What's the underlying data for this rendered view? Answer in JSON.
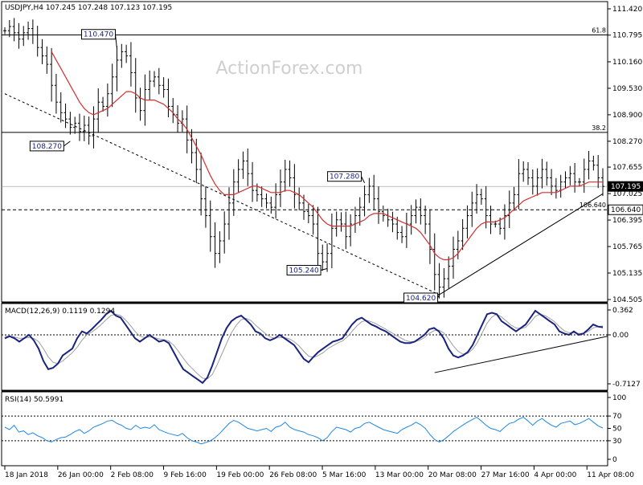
{
  "chart_data": [
    {
      "type": "candlestick",
      "title": "USDJPY,H4  107.245 107.248 107.123 107.195",
      "symbol": "USDJPY",
      "timeframe": "H4",
      "ohlc_last": {
        "open": 107.245,
        "high": 107.248,
        "low": 107.123,
        "close": 107.195
      },
      "watermark": "ActionForex.com",
      "ylim": [
        104.505,
        111.42
      ],
      "y_ticks": [
        "111.420",
        "110.795",
        "110.160",
        "109.530",
        "108.900",
        "108.270",
        "107.655",
        "107.025",
        "106.395",
        "105.765",
        "105.135",
        "104.505"
      ],
      "current_price_label": "107.195",
      "horizontal_levels": [
        {
          "value": 110.8,
          "label": "61.8",
          "style": "solid"
        },
        {
          "value": 108.48,
          "label": "38.2",
          "style": "solid"
        },
        {
          "value": 107.195,
          "label": "",
          "style": "thin"
        },
        {
          "value": 106.64,
          "label": "106.640",
          "style": "dashed"
        }
      ],
      "annotations": [
        {
          "text": "110.470",
          "value": 110.47
        },
        {
          "text": "108.270",
          "value": 108.27
        },
        {
          "text": "107.280",
          "value": 107.28
        },
        {
          "text": "105.240",
          "value": 105.24
        },
        {
          "text": "104.620",
          "value": 104.62
        }
      ],
      "trendlines": [
        {
          "style": "dashed",
          "from": {
            "bar": 0,
            "value": 109.4
          },
          "to": {
            "bar": 93,
            "value": 104.62
          }
        },
        {
          "style": "solid",
          "from": {
            "bar": 93,
            "value": 104.62
          },
          "to": {
            "bar": 128,
            "value": 107.02
          }
        }
      ],
      "close_series": [
        110.9,
        111.0,
        110.85,
        110.7,
        110.85,
        110.95,
        110.8,
        110.5,
        110.3,
        110.1,
        109.6,
        109.2,
        108.95,
        108.8,
        108.6,
        108.7,
        108.5,
        108.65,
        108.4,
        108.8,
        109.2,
        109.1,
        109.4,
        109.8,
        110.2,
        110.4,
        110.3,
        109.9,
        109.3,
        109.0,
        109.5,
        109.7,
        109.8,
        109.6,
        109.5,
        109.1,
        108.9,
        108.7,
        108.8,
        108.3,
        108.0,
        107.6,
        106.9,
        106.5,
        106.0,
        105.6,
        105.9,
        106.3,
        106.8,
        107.3,
        107.6,
        107.8,
        107.5,
        107.1,
        107.0,
        106.9,
        106.8,
        106.7,
        107.0,
        107.3,
        107.6,
        107.4,
        107.0,
        106.8,
        106.6,
        106.5,
        106.3,
        105.6,
        105.4,
        105.6,
        106.2,
        106.4,
        106.3,
        106.0,
        106.3,
        106.5,
        106.7,
        107.0,
        107.2,
        106.9,
        106.6,
        106.5,
        106.4,
        106.3,
        106.1,
        106.0,
        106.3,
        106.5,
        106.7,
        106.5,
        106.3,
        105.7,
        105.1,
        104.8,
        105.0,
        105.3,
        105.7,
        105.9,
        106.2,
        106.5,
        106.8,
        107.0,
        106.9,
        106.5,
        106.3,
        106.3,
        106.2,
        106.5,
        106.8,
        107.0,
        107.5,
        107.6,
        107.4,
        107.2,
        107.4,
        107.6,
        107.4,
        107.2,
        107.1,
        107.3,
        107.4,
        107.5,
        107.3,
        107.3,
        107.6,
        107.8,
        107.7,
        107.4,
        107.195
      ],
      "ma_series": [
        null,
        null,
        null,
        null,
        null,
        null,
        null,
        null,
        null,
        null,
        110.4,
        110.2,
        110.0,
        109.8,
        109.6,
        109.4,
        109.2,
        109.05,
        108.95,
        108.9,
        108.95,
        109.0,
        109.05,
        109.15,
        109.25,
        109.35,
        109.45,
        109.45,
        109.4,
        109.3,
        109.25,
        109.25,
        109.25,
        109.2,
        109.15,
        109.05,
        108.95,
        108.8,
        108.7,
        108.55,
        108.35,
        108.15,
        107.95,
        107.7,
        107.45,
        107.25,
        107.1,
        107.0,
        107.0,
        107.0,
        107.05,
        107.1,
        107.15,
        107.2,
        107.2,
        107.15,
        107.1,
        107.05,
        107.05,
        107.05,
        107.1,
        107.1,
        107.05,
        107.0,
        106.9,
        106.8,
        106.7,
        106.55,
        106.4,
        106.3,
        106.25,
        106.25,
        106.25,
        106.25,
        106.25,
        106.3,
        106.35,
        106.4,
        106.5,
        106.55,
        106.55,
        106.55,
        106.5,
        106.45,
        106.4,
        106.35,
        106.3,
        106.25,
        106.2,
        106.1,
        105.95,
        105.8,
        105.6,
        105.5,
        105.45,
        105.45,
        105.5,
        105.6,
        105.75,
        105.9,
        106.05,
        106.2,
        106.3,
        106.35,
        106.35,
        106.35,
        106.4,
        106.45,
        106.55,
        106.65,
        106.75,
        106.85,
        106.9,
        106.95,
        107.0,
        107.05,
        107.05,
        107.05,
        107.05,
        107.1,
        107.15,
        107.2,
        107.2,
        107.2,
        107.25,
        107.3,
        107.3,
        107.3,
        107.3
      ],
      "x_tick_labels": [
        "18 Jan 2018",
        "26 Jan 00:00",
        "2 Feb 08:00",
        "9 Feb 16:00",
        "19 Feb 00:00",
        "26 Feb 08:00",
        "5 Mar 16:00",
        "13 Mar 00:00",
        "20 Mar 08:00",
        "27 Mar 16:00",
        "4 Apr 00:00",
        "11 Apr 08:00"
      ]
    },
    {
      "type": "line",
      "title": "MACD(12,26,9)  0.1119  0.1294",
      "ylim": [
        -0.7127,
        0.362
      ],
      "y_ticks": [
        "0.362",
        "0.00",
        "-0.7127"
      ],
      "current_value_label": "0.00",
      "series": [
        {
          "name": "",
          "values": [
            -0.05,
            -0.02,
            -0.05,
            -0.1,
            -0.05,
            0.0,
            -0.08,
            -0.2,
            -0.38,
            -0.5,
            -0.48,
            -0.42,
            -0.3,
            -0.25,
            -0.2,
            -0.05,
            0.05,
            0.02,
            0.08,
            0.15,
            0.22,
            0.3,
            0.35,
            0.28,
            0.25,
            0.15,
            0.05,
            -0.05,
            -0.1,
            -0.05,
            0.0,
            -0.05,
            -0.1,
            -0.08,
            -0.12,
            -0.25,
            -0.38,
            -0.5,
            -0.55,
            -0.6,
            -0.65,
            -0.7,
            -0.62,
            -0.45,
            -0.25,
            -0.05,
            0.1,
            0.2,
            0.25,
            0.28,
            0.22,
            0.15,
            0.05,
            0.02,
            -0.05,
            -0.08,
            -0.05,
            0.0,
            -0.05,
            -0.1,
            -0.15,
            -0.25,
            -0.35,
            -0.4,
            -0.32,
            -0.25,
            -0.2,
            -0.15,
            -0.1,
            -0.08,
            -0.05,
            0.05,
            0.15,
            0.22,
            0.25,
            0.2,
            0.15,
            0.12,
            0.08,
            0.05,
            0.0,
            -0.05,
            -0.1,
            -0.12,
            -0.12,
            -0.1,
            -0.05,
            0.0,
            0.08,
            0.1,
            0.05,
            -0.05,
            -0.2,
            -0.3,
            -0.33,
            -0.3,
            -0.25,
            -0.15,
            0.0,
            0.15,
            0.3,
            0.32,
            0.3,
            0.2,
            0.15,
            0.1,
            0.05,
            0.1,
            0.15,
            0.25,
            0.35,
            0.3,
            0.25,
            0.2,
            0.15,
            0.05,
            0.02,
            0.0,
            0.05,
            0.0,
            0.02,
            0.08,
            0.15,
            0.12,
            0.11
          ]
        },
        {
          "name": "",
          "values": [
            -0.02,
            -0.02,
            -0.03,
            -0.05,
            -0.05,
            -0.04,
            -0.05,
            -0.1,
            -0.2,
            -0.32,
            -0.4,
            -0.42,
            -0.38,
            -0.32,
            -0.26,
            -0.18,
            -0.08,
            0.0,
            0.04,
            0.09,
            0.15,
            0.22,
            0.28,
            0.3,
            0.28,
            0.22,
            0.14,
            0.05,
            -0.02,
            -0.04,
            -0.03,
            -0.04,
            -0.06,
            -0.07,
            -0.09,
            -0.15,
            -0.24,
            -0.34,
            -0.43,
            -0.5,
            -0.57,
            -0.63,
            -0.64,
            -0.58,
            -0.44,
            -0.28,
            -0.12,
            0.03,
            0.14,
            0.22,
            0.24,
            0.21,
            0.14,
            0.08,
            0.02,
            -0.03,
            -0.05,
            -0.04,
            -0.04,
            -0.06,
            -0.1,
            -0.16,
            -0.24,
            -0.31,
            -0.33,
            -0.3,
            -0.26,
            -0.2,
            -0.16,
            -0.12,
            -0.09,
            -0.03,
            0.05,
            0.13,
            0.19,
            0.21,
            0.19,
            0.16,
            0.12,
            0.08,
            0.04,
            0.0,
            -0.04,
            -0.08,
            -0.1,
            -0.1,
            -0.08,
            -0.04,
            0.02,
            0.06,
            0.07,
            0.03,
            -0.06,
            -0.16,
            -0.24,
            -0.28,
            -0.27,
            -0.21,
            -0.11,
            0.03,
            0.17,
            0.26,
            0.3,
            0.26,
            0.2,
            0.14,
            0.1,
            0.09,
            0.11,
            0.18,
            0.27,
            0.3,
            0.28,
            0.24,
            0.19,
            0.12,
            0.06,
            0.03,
            0.03,
            0.02,
            0.02,
            0.05,
            0.1,
            0.12,
            0.1294
          ]
        }
      ],
      "trendline": {
        "style": "solid",
        "from": {
          "bar": 92,
          "value": -0.55
        },
        "to": {
          "bar": 129,
          "value": -0.02
        }
      }
    },
    {
      "type": "line",
      "title": "RSI(14)  50.5991",
      "ylim": [
        0,
        100
      ],
      "y_ticks": [
        "100",
        "70",
        "50",
        "30",
        "0"
      ],
      "levels": [
        70,
        30
      ],
      "series": [
        {
          "name": "",
          "values": [
            52,
            48,
            55,
            44,
            46,
            40,
            43,
            38,
            35,
            30,
            28,
            32,
            35,
            36,
            40,
            45,
            48,
            42,
            46,
            52,
            55,
            58,
            62,
            63,
            58,
            55,
            50,
            48,
            55,
            50,
            52,
            50,
            56,
            48,
            45,
            42,
            40,
            38,
            42,
            35,
            30,
            28,
            25,
            27,
            30,
            35,
            42,
            50,
            58,
            63,
            60,
            55,
            50,
            48,
            46,
            48,
            50,
            45,
            52,
            54,
            60,
            52,
            48,
            46,
            44,
            40,
            38,
            35,
            30,
            35,
            45,
            52,
            50,
            48,
            44,
            50,
            52,
            58,
            60,
            56,
            52,
            48,
            46,
            44,
            42,
            48,
            52,
            55,
            60,
            56,
            50,
            40,
            32,
            28,
            32,
            38,
            45,
            50,
            55,
            60,
            64,
            68,
            62,
            55,
            50,
            48,
            45,
            52,
            58,
            60,
            65,
            68,
            62,
            55,
            62,
            66,
            60,
            55,
            52,
            58,
            60,
            62,
            56,
            58,
            62,
            66,
            60,
            54,
            50.5991
          ]
        }
      ]
    }
  ]
}
